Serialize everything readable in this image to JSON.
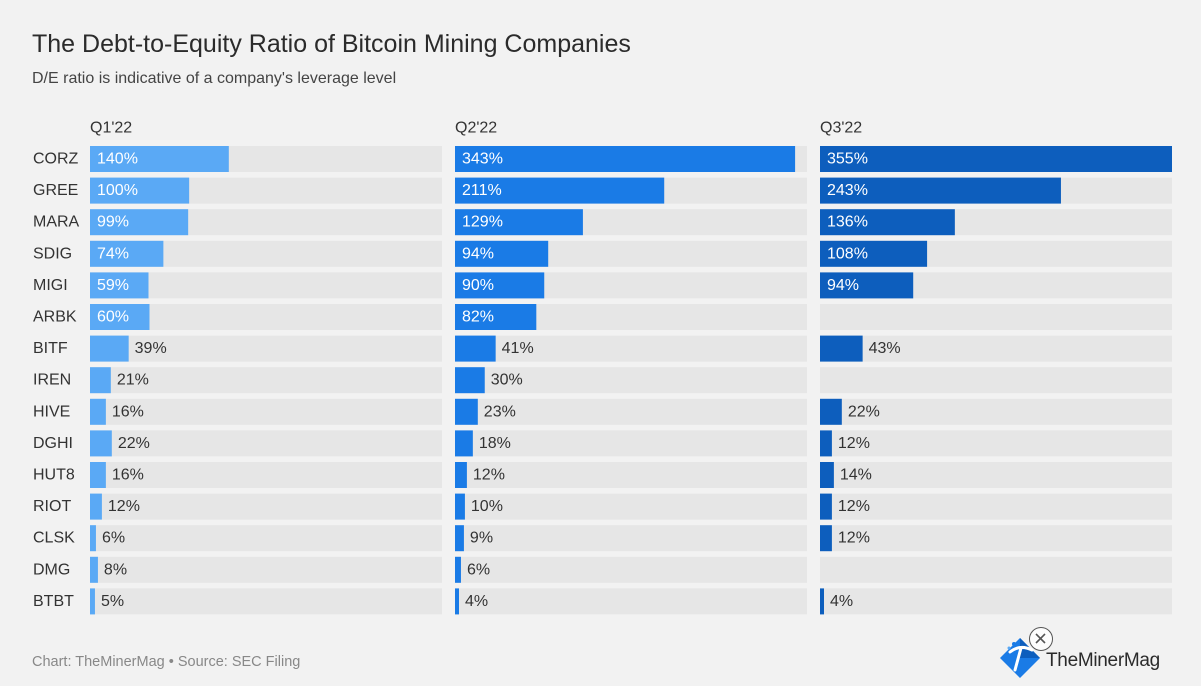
{
  "header": {
    "title": "The Debt-to-Equity Ratio of Bitcoin Mining Companies",
    "subtitle": "D/E ratio is indicative of a company's leverage level"
  },
  "footer": {
    "text": "Chart: TheMinerMag • Source: SEC Filing"
  },
  "brand": {
    "name": "TheMinerMag"
  },
  "chart_data": {
    "type": "bar",
    "orientation": "horizontal",
    "title": "The Debt-to-Equity Ratio of Bitcoin Mining Companies",
    "subtitle": "D/E ratio is indicative of a company's leverage level",
    "categories": [
      "CORZ",
      "GREE",
      "MARA",
      "SDIG",
      "MIGI",
      "ARBK",
      "BITF",
      "IREN",
      "HIVE",
      "DGHI",
      "HUT8",
      "RIOT",
      "CLSK",
      "DMG",
      "BTBT"
    ],
    "xlim": [
      0,
      355
    ],
    "value_suffix": "%",
    "series": [
      {
        "name": "Q1'22",
        "color": "#5aa9f5",
        "values": [
          140,
          100,
          99,
          74,
          59,
          60,
          39,
          21,
          16,
          22,
          16,
          12,
          6,
          8,
          5
        ]
      },
      {
        "name": "Q2'22",
        "color": "#1a7be6",
        "values": [
          343,
          211,
          129,
          94,
          90,
          82,
          41,
          30,
          23,
          18,
          12,
          10,
          9,
          6,
          4
        ]
      },
      {
        "name": "Q3'22",
        "color": "#0d5ebd",
        "values": [
          355,
          243,
          136,
          108,
          94,
          null,
          43,
          null,
          22,
          12,
          14,
          12,
          12,
          null,
          4
        ]
      }
    ]
  }
}
